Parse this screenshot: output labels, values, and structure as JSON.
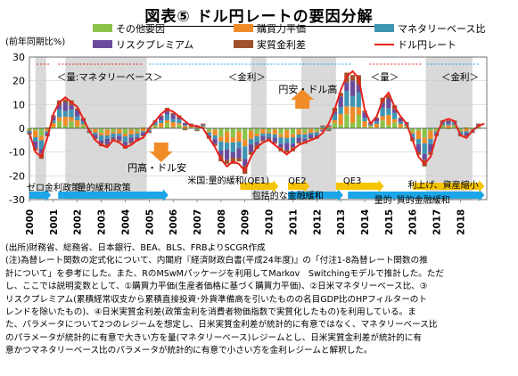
{
  "title": "図表⑤ ドル円レートの要因分解",
  "unit_label": "(前年同期比%)",
  "chart_data": {
    "type": "bar",
    "stacked": true,
    "ylim": [
      -30,
      30
    ],
    "yticks": [
      -30,
      -20,
      -10,
      0,
      10,
      20,
      30
    ],
    "x_tick_labels": [
      "2000",
      "2001",
      "2002",
      "2003",
      "2004",
      "2005",
      "2006",
      "2007",
      "2008",
      "2009",
      "2010",
      "2011",
      "2012",
      "2013",
      "2014",
      "2015",
      "2016",
      "2017",
      "2018"
    ],
    "legend": [
      "その他要因",
      "購買力平価",
      "マネタリーベース比",
      "リスクプレミアム",
      "実質金利差",
      "ドル円レート"
    ],
    "legend_position": "top",
    "colors": {
      "その他要因": "#8bc34a",
      "購買力平価": "#f08c28",
      "マネタリーベース比": "#3d95b3",
      "リスクプレミアム": "#6a4c9c",
      "実質金利差": "#a0522d",
      "ドル円レート": "#e8231c",
      "shade": "#d9d9d9",
      "arrow_blue": "#1aa6e8",
      "arrow_yellow": "#f5c400",
      "arrow_red": "#e8231c"
    },
    "regime_shading": [
      [
        2000.25,
        2000.7
      ],
      [
        2001.5,
        2004.9
      ],
      [
        2009.25,
        2009.9
      ],
      [
        2011.35,
        2012.8
      ],
      [
        2016.55,
        2018.5
      ]
    ],
    "usdjpy": [
      [
        2000.0,
        -2
      ],
      [
        2000.25,
        -10
      ],
      [
        2000.5,
        -12
      ],
      [
        2000.75,
        -4
      ],
      [
        2001.0,
        6
      ],
      [
        2001.25,
        11
      ],
      [
        2001.5,
        13
      ],
      [
        2001.75,
        11
      ],
      [
        2002.0,
        9
      ],
      [
        2002.25,
        4
      ],
      [
        2002.5,
        -1
      ],
      [
        2002.75,
        -5
      ],
      [
        2003.0,
        -7
      ],
      [
        2003.25,
        -8
      ],
      [
        2003.5,
        -5
      ],
      [
        2003.75,
        -6
      ],
      [
        2004.0,
        -8
      ],
      [
        2004.25,
        -7
      ],
      [
        2004.5,
        -5
      ],
      [
        2004.75,
        -4
      ],
      [
        2005.0,
        0
      ],
      [
        2005.25,
        3
      ],
      [
        2005.5,
        6
      ],
      [
        2005.75,
        8
      ],
      [
        2006.0,
        7
      ],
      [
        2006.25,
        5
      ],
      [
        2006.5,
        3
      ],
      [
        2006.75,
        1
      ],
      [
        2007.0,
        1
      ],
      [
        2007.25,
        0
      ],
      [
        2007.5,
        -4
      ],
      [
        2007.75,
        -8
      ],
      [
        2008.0,
        -13
      ],
      [
        2008.25,
        -16
      ],
      [
        2008.5,
        -14
      ],
      [
        2008.75,
        -15
      ],
      [
        2009.0,
        -18
      ],
      [
        2009.25,
        -12
      ],
      [
        2009.5,
        -8
      ],
      [
        2009.75,
        -6
      ],
      [
        2010.0,
        -5
      ],
      [
        2010.25,
        -7
      ],
      [
        2010.5,
        -9
      ],
      [
        2010.75,
        -11
      ],
      [
        2011.0,
        -9
      ],
      [
        2011.25,
        -7
      ],
      [
        2011.5,
        -6
      ],
      [
        2011.75,
        -5
      ],
      [
        2012.0,
        -4
      ],
      [
        2012.25,
        -2
      ],
      [
        2012.5,
        2
      ],
      [
        2012.75,
        8
      ],
      [
        2013.0,
        16
      ],
      [
        2013.25,
        22
      ],
      [
        2013.5,
        24
      ],
      [
        2013.75,
        21
      ],
      [
        2014.0,
        8
      ],
      [
        2014.25,
        2
      ],
      [
        2014.5,
        5
      ],
      [
        2014.75,
        12
      ],
      [
        2015.0,
        15
      ],
      [
        2015.25,
        9
      ],
      [
        2015.5,
        5
      ],
      [
        2015.75,
        2
      ],
      [
        2016.0,
        -5
      ],
      [
        2016.25,
        -12
      ],
      [
        2016.5,
        -15
      ],
      [
        2016.75,
        -12
      ],
      [
        2017.0,
        -3
      ],
      [
        2017.25,
        3
      ],
      [
        2017.5,
        4
      ],
      [
        2017.75,
        3
      ],
      [
        2018.0,
        -3
      ],
      [
        2018.25,
        -4
      ],
      [
        2018.5,
        -1
      ],
      [
        2018.75,
        1
      ],
      [
        2019.0,
        2
      ]
    ],
    "annotations": {
      "regime_1": "＜量:マネタリーベース＞",
      "regime_2": "＜金利＞",
      "regime_3": "＜量＞",
      "regime_4": "＜金利＞",
      "yen_weak": "円安・ドル高",
      "yen_strong": "円高・ドル安",
      "policy_1": "ゼロ金利政策",
      "policy_2": "量的緩和政策",
      "policy_3": "米国:量的緩和(QE1)",
      "policy_4": "QE2",
      "policy_5": "包括的な金融緩和",
      "policy_6": "QE3",
      "policy_7": "量的･質的金融緩和",
      "policy_8": "利上げ、資産縮小"
    }
  },
  "notes": [
    "(出所)財務省、総務省、日本銀行、BEA、BLS、FRBよりSCGR作成",
    "(注)為替レート関数の定式化について、内閣府『経済財政白書(平成24年度)』の「付注1-8為替レート関数の推",
    "計について」を参考にした。また、RのMSwMパッケージを利用してMarkov　Switchingモデルで推計した。ただ",
    "し、ここでは説明変数として、①購買力平価(生産者価格に基づく購買力平価)、②日米マネタリーベース比、③",
    "リスクプレミアム(累積経常収支から累積直接投資･外貨準備高を引いたものの名目GDP比のHPフィルターのト",
    "レンドを除いたもの)、④日米実質金利差(政策金利を消費者物価指数で実質化したもの)を利用している。ま",
    "た、パラメータについて2つのレジームを想定し、日米実質金利差が統計的に有意ではなく、マネタリーベース比",
    "のパラメータが統計的に有意で大きい方を量(マネタリーベース)レジームとし、日米実質金利差が統計的に有",
    "意かつマネタリーベース比のパラメータが統計的に有意で小さい方を金利レジームと解釈した。"
  ]
}
